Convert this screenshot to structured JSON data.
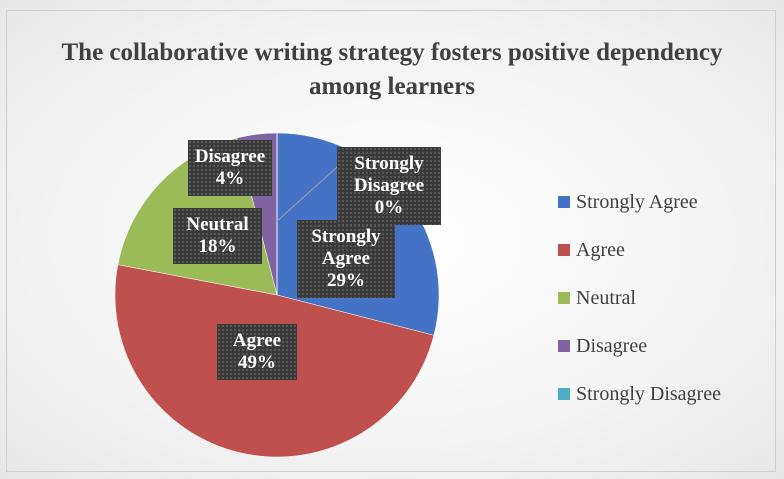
{
  "chart_data": {
    "type": "pie",
    "title": "The collaborative writing strategy fosters positive dependency among learners",
    "categories": [
      "Strongly Agree",
      "Agree",
      "Neutral",
      "Disagree",
      "Strongly Disagree"
    ],
    "values": [
      29,
      49,
      18,
      4,
      0
    ],
    "value_labels": [
      "29%",
      "49%",
      "18%",
      "4%",
      "0%"
    ],
    "colors": [
      "#4472c4",
      "#c0504d",
      "#9bbb59",
      "#8064a2",
      "#4bacc6"
    ],
    "legend": "right"
  }
}
